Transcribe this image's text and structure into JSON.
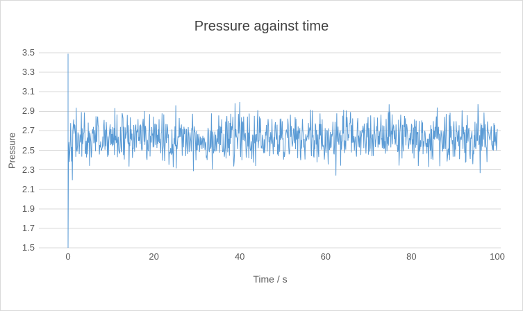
{
  "chart_data": {
    "type": "line",
    "title": "Pressure against time",
    "xlabel": "Time / s",
    "ylabel": "Pressure",
    "xlim": [
      0,
      100
    ],
    "ylim": [
      1.5,
      3.5
    ],
    "xticks": [
      0,
      20,
      40,
      60,
      80,
      100
    ],
    "yticks": [
      1.5,
      1.7,
      1.9,
      2.1,
      2.3,
      2.5,
      2.7,
      2.9,
      3.1,
      3.3,
      3.5
    ],
    "ytick_decimals": 1,
    "grid": "horizontal",
    "legend": "none",
    "line_color": "#5B9BD5",
    "gridline_color": "#D9D9D9",
    "text_color": "#595959",
    "series": [
      {
        "name": "Pressure",
        "style": "dense random noise",
        "mean": 2.62,
        "noise_std": 0.13,
        "clamp_min": 2.05,
        "clamp_max": 3.12,
        "n_points": 1000,
        "seed": 42,
        "spikes": [
          {
            "x": 0,
            "ymin": 1.5,
            "ymax": 3.49
          }
        ],
        "notable_features": [
          "full-range vertical spike at t=0 spanning 1.5 to ~3.5",
          "signal fluctuates randomly around ~2.6 between roughly 2.1 and 3.1"
        ]
      }
    ]
  }
}
